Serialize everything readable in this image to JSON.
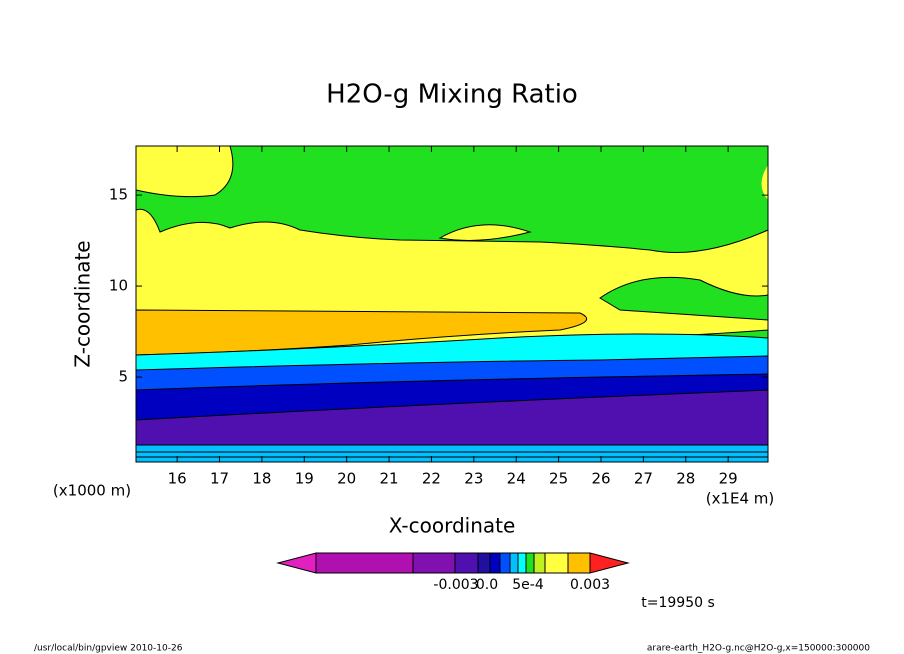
{
  "chart_data": {
    "type": "contour",
    "title": "H2O-g Mixing Ratio",
    "x_label": "X-coordinate",
    "y_label": "Z-coordinate",
    "x_unit": "(x1E4 m)",
    "y_unit": "(x1000 m)",
    "xlim": [
      15.03,
      29.94
    ],
    "ylim": [
      0.33,
      17.7
    ],
    "xticks": [
      16,
      17,
      18,
      19,
      20,
      21,
      22,
      23,
      24,
      25,
      26,
      27,
      28,
      29
    ],
    "yticks": [
      5,
      10,
      15
    ],
    "colorbar_colors": [
      "#e020c0",
      "#b010b0",
      "#8010b0",
      "#5010b0",
      "#2010a0",
      "#0000c0",
      "#0050ff",
      "#00c0ff",
      "#00ffff",
      "#20e020",
      "#c0f020",
      "#ffff40",
      "#ffc000",
      "#ff8000",
      "#ff2020"
    ],
    "colorbar_labels": [
      "-0.003",
      "0.0",
      "5e-4",
      "0.003"
    ],
    "time_label": "t=19950 s",
    "footer_left": "/usr/local/bin/gpview  2010-10-26",
    "footer_right": "arare-earth_H2O-g.nc@H2O-g,x=150000:300000"
  }
}
